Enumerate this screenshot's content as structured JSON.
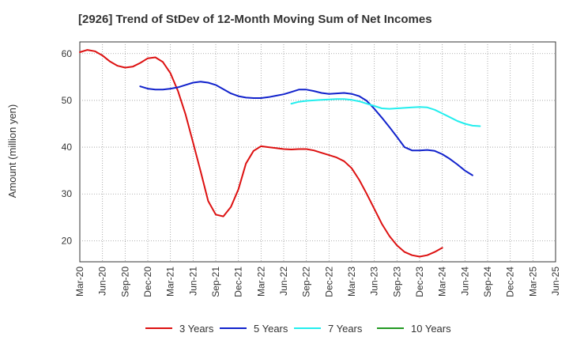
{
  "chart_data": {
    "type": "line",
    "title": "[2926]  Trend of StDev of 12-Month Moving Sum of Net Incomes",
    "xlabel": "",
    "ylabel": "Amount (million yen)",
    "x_tick_labels": [
      "Mar-20",
      "Jun-20",
      "Sep-20",
      "Dec-20",
      "Mar-21",
      "Jun-21",
      "Sep-21",
      "Dec-21",
      "Mar-22",
      "Jun-22",
      "Sep-22",
      "Dec-22",
      "Mar-23",
      "Jun-23",
      "Sep-23",
      "Dec-23",
      "Mar-24",
      "Jun-24",
      "Sep-24",
      "Dec-24",
      "Mar-25",
      "Jun-25"
    ],
    "y_ticks": [
      20,
      30,
      40,
      50,
      60
    ],
    "ylim": [
      15.5,
      62.5
    ],
    "grid": true,
    "legend_position": "bottom",
    "series": [
      {
        "name": "3 Years",
        "color": "#dd1111",
        "points": [
          [
            0,
            60.3
          ],
          [
            1,
            60.8
          ],
          [
            2,
            60.5
          ],
          [
            3,
            59.6
          ],
          [
            4,
            58.3
          ],
          [
            5,
            57.4
          ],
          [
            6,
            57.0
          ],
          [
            7,
            57.2
          ],
          [
            8,
            58.0
          ],
          [
            9,
            59.0
          ],
          [
            10,
            59.2
          ],
          [
            11,
            58.2
          ],
          [
            12,
            55.8
          ],
          [
            13,
            52.0
          ],
          [
            14,
            47.0
          ],
          [
            15,
            41.0
          ],
          [
            16,
            34.8
          ],
          [
            17,
            28.5
          ],
          [
            18,
            25.6
          ],
          [
            19,
            25.2
          ],
          [
            20,
            27.2
          ],
          [
            21,
            31.0
          ],
          [
            22,
            36.5
          ],
          [
            23,
            39.2
          ],
          [
            24,
            40.2
          ],
          [
            25,
            40.0
          ],
          [
            26,
            39.8
          ],
          [
            27,
            39.6
          ],
          [
            28,
            39.5
          ],
          [
            29,
            39.6
          ],
          [
            30,
            39.6
          ],
          [
            31,
            39.3
          ],
          [
            32,
            38.8
          ],
          [
            33,
            38.3
          ],
          [
            34,
            37.8
          ],
          [
            35,
            37.0
          ],
          [
            36,
            35.5
          ],
          [
            37,
            33.0
          ],
          [
            38,
            30.0
          ],
          [
            39,
            26.8
          ],
          [
            40,
            23.6
          ],
          [
            41,
            21.0
          ],
          [
            42,
            19.0
          ],
          [
            43,
            17.6
          ],
          [
            44,
            16.9
          ],
          [
            45,
            16.6
          ],
          [
            46,
            16.9
          ],
          [
            47,
            17.6
          ],
          [
            48,
            18.5
          ]
        ]
      },
      {
        "name": "5 Years",
        "color": "#1122cc",
        "points": [
          [
            8,
            53.0
          ],
          [
            9,
            52.5
          ],
          [
            10,
            52.3
          ],
          [
            11,
            52.3
          ],
          [
            12,
            52.5
          ],
          [
            13,
            52.8
          ],
          [
            14,
            53.3
          ],
          [
            15,
            53.8
          ],
          [
            16,
            54.0
          ],
          [
            17,
            53.8
          ],
          [
            18,
            53.3
          ],
          [
            19,
            52.4
          ],
          [
            20,
            51.5
          ],
          [
            21,
            50.9
          ],
          [
            22,
            50.6
          ],
          [
            23,
            50.5
          ],
          [
            24,
            50.5
          ],
          [
            25,
            50.7
          ],
          [
            26,
            51.0
          ],
          [
            27,
            51.3
          ],
          [
            28,
            51.8
          ],
          [
            29,
            52.3
          ],
          [
            30,
            52.3
          ],
          [
            31,
            52.0
          ],
          [
            32,
            51.6
          ],
          [
            33,
            51.4
          ],
          [
            34,
            51.5
          ],
          [
            35,
            51.6
          ],
          [
            36,
            51.4
          ],
          [
            37,
            50.9
          ],
          [
            38,
            49.9
          ],
          [
            39,
            48.2
          ],
          [
            40,
            46.3
          ],
          [
            41,
            44.3
          ],
          [
            42,
            42.2
          ],
          [
            43,
            40.0
          ],
          [
            44,
            39.3
          ],
          [
            45,
            39.3
          ],
          [
            46,
            39.4
          ],
          [
            47,
            39.2
          ],
          [
            48,
            38.5
          ],
          [
            49,
            37.5
          ],
          [
            50,
            36.3
          ],
          [
            51,
            35.0
          ],
          [
            52,
            34.0
          ]
        ]
      },
      {
        "name": "7 Years",
        "color": "#22eeee",
        "points": [
          [
            28,
            49.3
          ],
          [
            29,
            49.7
          ],
          [
            30,
            49.9
          ],
          [
            31,
            50.0
          ],
          [
            32,
            50.1
          ],
          [
            33,
            50.2
          ],
          [
            34,
            50.3
          ],
          [
            35,
            50.3
          ],
          [
            36,
            50.1
          ],
          [
            37,
            49.8
          ],
          [
            38,
            49.3
          ],
          [
            39,
            48.8
          ],
          [
            40,
            48.3
          ],
          [
            41,
            48.2
          ],
          [
            42,
            48.3
          ],
          [
            43,
            48.4
          ],
          [
            44,
            48.5
          ],
          [
            45,
            48.6
          ],
          [
            46,
            48.5
          ],
          [
            47,
            48.0
          ],
          [
            48,
            47.2
          ],
          [
            49,
            46.4
          ],
          [
            50,
            45.6
          ],
          [
            51,
            45.0
          ],
          [
            52,
            44.6
          ],
          [
            53,
            44.5
          ]
        ]
      },
      {
        "name": "10 Years",
        "color": "#229922",
        "points": []
      }
    ]
  }
}
